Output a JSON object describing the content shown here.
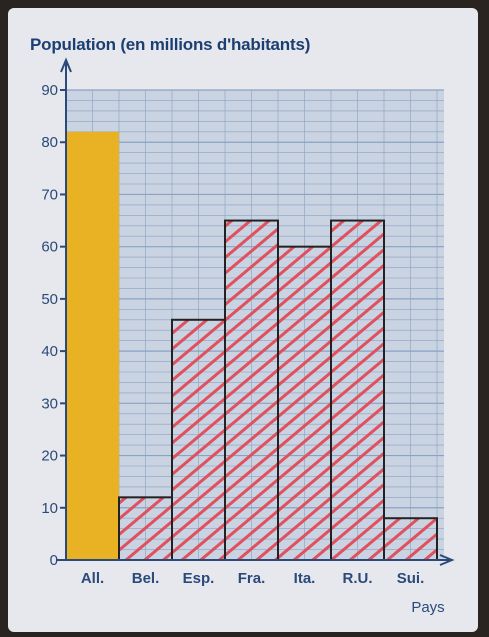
{
  "chart_data": {
    "type": "bar",
    "title": "Population (en millions d'habitants)",
    "xlabel": "Pays",
    "ylabel": "",
    "ylim": [
      0,
      90
    ],
    "yticks": [
      0,
      10,
      20,
      30,
      40,
      50,
      60,
      70,
      80,
      90
    ],
    "categories": [
      "All.",
      "Bel.",
      "Esp.",
      "Fra.",
      "Ita.",
      "R.U.",
      "Sui."
    ],
    "values": [
      82,
      12,
      46,
      65,
      60,
      65,
      8
    ],
    "highlight": "All.",
    "grid": true,
    "colors": {
      "highlight_fill": "#e8b224",
      "hatch": "#e0505e",
      "grid": "#8aa2c2",
      "grid_bg": "#c9d3e1",
      "axis": "#2b4a7a",
      "outline": "#222222"
    }
  }
}
